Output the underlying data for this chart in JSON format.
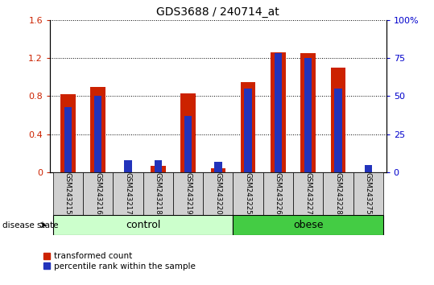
{
  "title": "GDS3688 / 240714_at",
  "samples": [
    "GSM243215",
    "GSM243216",
    "GSM243217",
    "GSM243218",
    "GSM243219",
    "GSM243220",
    "GSM243225",
    "GSM243226",
    "GSM243227",
    "GSM243228",
    "GSM243275"
  ],
  "red_values": [
    0.82,
    0.9,
    0.0,
    0.07,
    0.83,
    0.04,
    0.95,
    1.26,
    1.25,
    1.1,
    0.0
  ],
  "blue_values_pct": [
    43,
    50,
    8,
    8,
    37,
    7,
    55,
    78,
    75,
    55,
    5
  ],
  "ylim_left": [
    0,
    1.6
  ],
  "ylim_right": [
    0,
    100
  ],
  "yticks_left": [
    0,
    0.4,
    0.8,
    1.2,
    1.6
  ],
  "yticks_right": [
    0,
    25,
    50,
    75,
    100
  ],
  "ytick_labels_left": [
    "0",
    "0.4",
    "0.8",
    "1.2",
    "1.6"
  ],
  "ytick_labels_right": [
    "0",
    "25",
    "50",
    "75",
    "100%"
  ],
  "bar_width": 0.5,
  "blue_bar_width": 0.25,
  "red_color": "#cc2200",
  "blue_color": "#2233bb",
  "title_color": "#000000",
  "left_tick_color": "#cc2200",
  "right_tick_color": "#0000cc",
  "legend_red": "transformed count",
  "legend_blue": "percentile rank within the sample",
  "control_color": "#ccffcc",
  "obese_color": "#44cc44",
  "sample_box_color": "#d0d0d0",
  "group_label": "disease state"
}
